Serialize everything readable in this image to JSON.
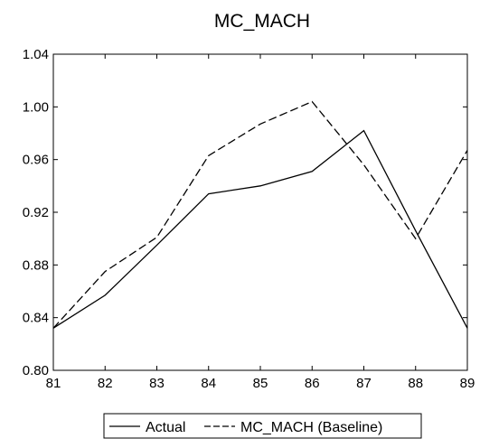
{
  "chart_data": {
    "type": "line",
    "title": "MC_MACH",
    "xlabel": "",
    "ylabel": "",
    "x": [
      "81",
      "82",
      "83",
      "84",
      "85",
      "86",
      "87",
      "88",
      "89"
    ],
    "xlim": [
      81,
      89
    ],
    "ylim": [
      0.8,
      1.04
    ],
    "yticks": [
      "0.80",
      "0.84",
      "0.88",
      "0.92",
      "0.96",
      "1.00",
      "1.04"
    ],
    "grid": false,
    "legend_position": "bottom",
    "series": [
      {
        "name": "Actual",
        "style": "solid",
        "color": "#000000",
        "values": [
          0.832,
          0.857,
          0.895,
          0.934,
          0.94,
          0.951,
          0.982,
          0.906,
          0.832
        ]
      },
      {
        "name": "MC_MACH (Baseline)",
        "style": "dashed",
        "color": "#000000",
        "values": [
          0.832,
          0.875,
          0.901,
          0.963,
          0.987,
          1.004,
          0.956,
          0.9,
          0.967
        ]
      }
    ]
  }
}
